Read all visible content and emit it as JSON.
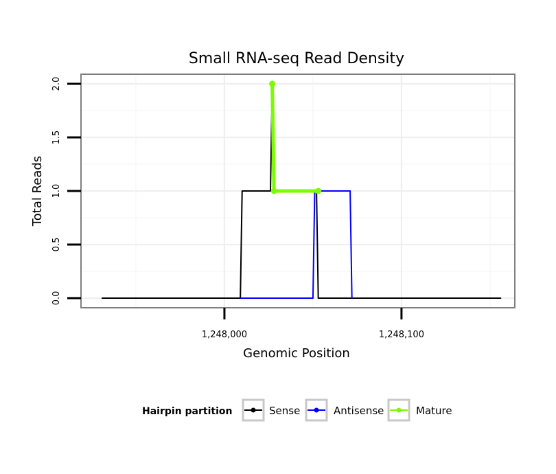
{
  "chart_data": {
    "type": "line",
    "title": "Small RNA-seq Read Density",
    "xlabel": "Genomic Position",
    "ylabel": "Total Reads",
    "xlim": [
      1247919,
      1248164
    ],
    "ylim": [
      -0.09,
      2.09
    ],
    "x_ticks": [
      {
        "value": 1248000,
        "label": "1,248,000"
      },
      {
        "value": 1248100,
        "label": "1,248,100"
      }
    ],
    "y_ticks": [
      {
        "value": 0,
        "label": "0.0"
      },
      {
        "value": 0.5,
        "label": "0.5"
      },
      {
        "value": 1,
        "label": "1.0"
      },
      {
        "value": 1.5,
        "label": "1.5"
      },
      {
        "value": 2,
        "label": "2.0"
      }
    ],
    "grid": true,
    "legend": {
      "title": "Hairpin partition",
      "position": "bottom",
      "entries": [
        {
          "name": "Sense",
          "color": "#000000"
        },
        {
          "name": "Antisense",
          "color": "#0000ff"
        },
        {
          "name": "Mature",
          "color": "#7cfc00"
        }
      ]
    },
    "series": [
      {
        "name": "Sense",
        "color": "#000000",
        "step": true,
        "x": [
          1247931,
          1248009,
          1248010,
          1248026,
          1248027,
          1248028,
          1248052,
          1248053,
          1248156
        ],
        "y": [
          0,
          0,
          1,
          1,
          2,
          1,
          1,
          0,
          0
        ]
      },
      {
        "name": "Antisense",
        "color": "#0000ff",
        "step": true,
        "x": [
          1248009,
          1248050,
          1248051,
          1248071,
          1248072
        ],
        "y": [
          0,
          0,
          1,
          1,
          0
        ]
      },
      {
        "name": "Mature",
        "color": "#7cfc00",
        "step": false,
        "x": [
          1248027,
          1248028,
          1248053
        ],
        "y": [
          2,
          1,
          1
        ]
      }
    ]
  }
}
